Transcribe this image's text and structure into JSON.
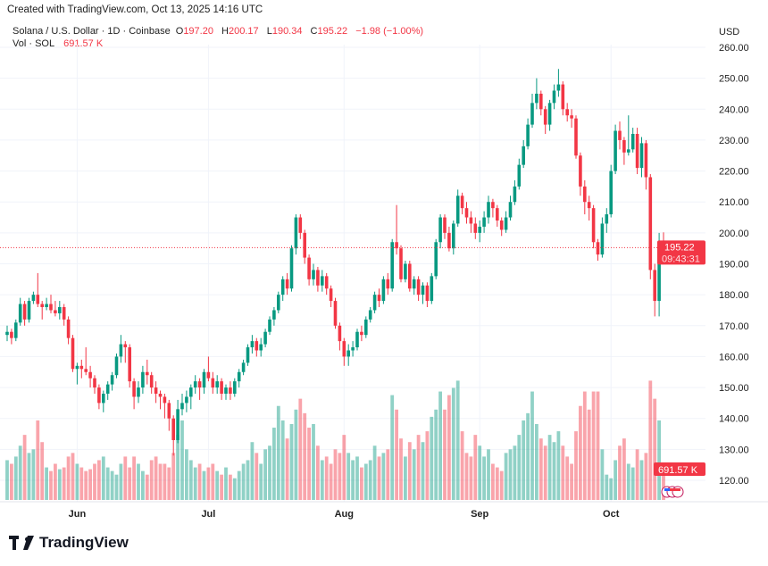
{
  "header": {
    "created": "Created with TradingView.com, Oct 13, 2025 14:16 UTC",
    "symbol": "Solana / U.S. Dollar · 1D · Coinbase",
    "o_label": "O",
    "o_value": "197.20",
    "h_label": "H",
    "h_value": "200.17",
    "l_label": "L",
    "l_value": "190.34",
    "c_label": "C",
    "c_value": "195.22",
    "change": "−1.98 (−1.00%)",
    "vol_label": "Vol · SOL",
    "vol_value": "691.57 K"
  },
  "axis": {
    "currency": "USD",
    "last_price": "195.22",
    "countdown": "09:43:31",
    "last_volume": "691.57 K"
  },
  "brand": {
    "name": "TradingView",
    "icon": "tradingview-logo-icon"
  },
  "colors": {
    "up": "#089981",
    "down": "#f23645",
    "grid": "#f0f3fa"
  },
  "chart_data": {
    "type": "candlestick",
    "ylim": [
      115,
      262
    ],
    "y_ticks": [
      "260.00",
      "250.00",
      "240.00",
      "230.00",
      "220.00",
      "210.00",
      "200.00",
      "190.00",
      "180.00",
      "170.00",
      "160.00",
      "150.00",
      "140.00",
      "130.00",
      "120.00"
    ],
    "x_ticks": [
      {
        "label": "Jun",
        "month": "2025-06"
      },
      {
        "label": "Jul",
        "month": "2025-07"
      },
      {
        "label": "Aug",
        "month": "2025-08"
      },
      {
        "label": "Sep",
        "month": "2025-09"
      },
      {
        "label": "Oct",
        "month": "2025-10"
      }
    ],
    "grid": true,
    "volume_unit": "K",
    "months": [
      {
        "month": "2025-05",
        "first_day": 16,
        "ohlc": [
          [
            167,
            170,
            165,
            168
          ],
          [
            168,
            169,
            164,
            166
          ],
          [
            166,
            172,
            165,
            171
          ],
          [
            171,
            179,
            170,
            177
          ],
          [
            177,
            178,
            170,
            172
          ],
          [
            172,
            179,
            171,
            178
          ],
          [
            178,
            181,
            177,
            180
          ],
          [
            180,
            187,
            176,
            177
          ],
          [
            177,
            178,
            172,
            176
          ],
          [
            176,
            179,
            175,
            177
          ],
          [
            177,
            180,
            174,
            175
          ],
          [
            175,
            178,
            173,
            174
          ],
          [
            174,
            178,
            172,
            176
          ],
          [
            176,
            177,
            170,
            172
          ],
          [
            172,
            173,
            164,
            166
          ],
          [
            166,
            167,
            155,
            156
          ]
        ],
        "volume": [
          1100,
          1000,
          1200,
          1500,
          1800,
          1300,
          1400,
          2200,
          1600,
          900,
          800,
          1000,
          850,
          900,
          1200,
          1300
        ]
      },
      {
        "month": "2025-06",
        "first_day": 1,
        "ohlc": [
          [
            156,
            158,
            151,
            157
          ],
          [
            157,
            159,
            153,
            156
          ],
          [
            156,
            163,
            154,
            155
          ],
          [
            155,
            157,
            150,
            153
          ],
          [
            153,
            154,
            148,
            150
          ],
          [
            150,
            151,
            143,
            145
          ],
          [
            145,
            149,
            142,
            148
          ],
          [
            148,
            152,
            146,
            151
          ],
          [
            151,
            155,
            149,
            154
          ],
          [
            154,
            161,
            153,
            160
          ],
          [
            160,
            167,
            158,
            164
          ],
          [
            164,
            165,
            158,
            163
          ],
          [
            163,
            164,
            150,
            152
          ],
          [
            152,
            153,
            143,
            147
          ],
          [
            147,
            152,
            145,
            150
          ],
          [
            150,
            157,
            148,
            155
          ],
          [
            155,
            159,
            151,
            154
          ],
          [
            154,
            155,
            148,
            150
          ],
          [
            150,
            152,
            145,
            148
          ],
          [
            148,
            149,
            143,
            147
          ],
          [
            147,
            148,
            140,
            145
          ],
          [
            145,
            146,
            136,
            140
          ],
          [
            140,
            141,
            128,
            133
          ],
          [
            133,
            146,
            132,
            143
          ],
          [
            143,
            148,
            141,
            145
          ],
          [
            145,
            149,
            142,
            147
          ],
          [
            147,
            151,
            143,
            150
          ],
          [
            150,
            154,
            148,
            152
          ],
          [
            152,
            153,
            146,
            150
          ],
          [
            150,
            156,
            148,
            155
          ]
        ],
        "volume": [
          1000,
          900,
          800,
          850,
          1000,
          1100,
          1200,
          900,
          800,
          700,
          1000,
          1200,
          900,
          1200,
          1000,
          800,
          700,
          1100,
          1200,
          1000,
          1000,
          900,
          1300,
          1800,
          2200,
          1400,
          1100,
          900,
          1000,
          800
        ]
      },
      {
        "month": "2025-07",
        "first_day": 1,
        "ohlc": [
          [
            155,
            160,
            152,
            153
          ],
          [
            153,
            155,
            148,
            150
          ],
          [
            150,
            154,
            148,
            152
          ],
          [
            152,
            153,
            146,
            148
          ],
          [
            148,
            151,
            146,
            150
          ],
          [
            150,
            152,
            146,
            148
          ],
          [
            148,
            153,
            147,
            152
          ],
          [
            152,
            156,
            150,
            155
          ],
          [
            155,
            159,
            154,
            158
          ],
          [
            158,
            164,
            157,
            163
          ],
          [
            163,
            167,
            161,
            165
          ],
          [
            165,
            166,
            160,
            162
          ],
          [
            162,
            166,
            160,
            164
          ],
          [
            164,
            169,
            163,
            168
          ],
          [
            168,
            173,
            167,
            172
          ],
          [
            172,
            176,
            170,
            175
          ],
          [
            175,
            181,
            174,
            180
          ],
          [
            180,
            186,
            178,
            185
          ],
          [
            185,
            187,
            180,
            182
          ],
          [
            182,
            196,
            181,
            195
          ],
          [
            195,
            206,
            193,
            205
          ],
          [
            205,
            206,
            198,
            200
          ],
          [
            200,
            201,
            190,
            192
          ],
          [
            192,
            193,
            183,
            185
          ],
          [
            185,
            190,
            183,
            188
          ],
          [
            188,
            189,
            181,
            183
          ],
          [
            183,
            188,
            181,
            186
          ],
          [
            186,
            187,
            180,
            182
          ],
          [
            182,
            183,
            176,
            178
          ],
          [
            178,
            179,
            169,
            170
          ],
          [
            170,
            171,
            162,
            165
          ]
        ],
        "volume": [
          900,
          1000,
          800,
          700,
          900,
          700,
          600,
          800,
          1000,
          1100,
          1600,
          1300,
          1000,
          1400,
          1500,
          2000,
          2600,
          2200,
          1700,
          2100,
          2500,
          2800,
          2400,
          2000,
          2100,
          1500,
          1100,
          1200,
          1000,
          1400,
          1300
        ]
      },
      {
        "month": "2025-08",
        "first_day": 1,
        "ohlc": [
          [
            165,
            166,
            157,
            160
          ],
          [
            160,
            164,
            157,
            162
          ],
          [
            162,
            165,
            160,
            163
          ],
          [
            163,
            169,
            162,
            168
          ],
          [
            168,
            170,
            165,
            167
          ],
          [
            167,
            173,
            166,
            172
          ],
          [
            172,
            176,
            171,
            175
          ],
          [
            175,
            181,
            174,
            180
          ],
          [
            180,
            182,
            176,
            178
          ],
          [
            178,
            186,
            177,
            185
          ],
          [
            185,
            187,
            180,
            182
          ],
          [
            182,
            198,
            181,
            197
          ],
          [
            197,
            209,
            193,
            195
          ],
          [
            195,
            196,
            184,
            185
          ],
          [
            185,
            191,
            184,
            190
          ],
          [
            190,
            191,
            181,
            182
          ],
          [
            182,
            186,
            180,
            185
          ],
          [
            185,
            186,
            178,
            180
          ],
          [
            180,
            184,
            177,
            183
          ],
          [
            183,
            184,
            176,
            178
          ],
          [
            178,
            187,
            177,
            186
          ],
          [
            186,
            198,
            185,
            197
          ],
          [
            197,
            206,
            195,
            205
          ],
          [
            205,
            206,
            198,
            200
          ],
          [
            200,
            202,
            194,
            195
          ],
          [
            195,
            204,
            193,
            203
          ],
          [
            203,
            214,
            202,
            212
          ],
          [
            212,
            213,
            206,
            208
          ],
          [
            208,
            210,
            203,
            205
          ],
          [
            205,
            207,
            200,
            203
          ],
          [
            203,
            205,
            198,
            200
          ]
        ],
        "volume": [
          1800,
          1300,
          1100,
          1200,
          900,
          1000,
          1100,
          1500,
          1200,
          1300,
          1400,
          2900,
          2500,
          1700,
          1200,
          1600,
          1400,
          1800,
          1600,
          1900,
          2300,
          2500,
          3000,
          2500,
          2900,
          3100,
          3300,
          1900,
          1300,
          1200,
          1800
        ]
      },
      {
        "month": "2025-09",
        "first_day": 1,
        "ohlc": [
          [
            200,
            204,
            197,
            202
          ],
          [
            202,
            207,
            200,
            205
          ],
          [
            205,
            212,
            203,
            210
          ],
          [
            210,
            211,
            205,
            208
          ],
          [
            208,
            209,
            202,
            204
          ],
          [
            204,
            205,
            199,
            201
          ],
          [
            201,
            207,
            200,
            205
          ],
          [
            205,
            212,
            204,
            210
          ],
          [
            210,
            217,
            209,
            215
          ],
          [
            215,
            224,
            214,
            222
          ],
          [
            222,
            230,
            221,
            228
          ],
          [
            228,
            237,
            227,
            235
          ],
          [
            235,
            245,
            234,
            242
          ],
          [
            242,
            250,
            240,
            245
          ],
          [
            245,
            246,
            238,
            240
          ],
          [
            240,
            241,
            232,
            235
          ],
          [
            235,
            243,
            233,
            242
          ],
          [
            242,
            248,
            240,
            246
          ],
          [
            246,
            253,
            244,
            248
          ],
          [
            248,
            249,
            238,
            240
          ],
          [
            240,
            242,
            236,
            238
          ],
          [
            238,
            240,
            234,
            237
          ],
          [
            237,
            238,
            224,
            225
          ],
          [
            225,
            226,
            212,
            215
          ],
          [
            215,
            217,
            206,
            210
          ],
          [
            210,
            212,
            204,
            208
          ],
          [
            208,
            209,
            195,
            197
          ],
          [
            197,
            198,
            191,
            193
          ],
          [
            193,
            205,
            192,
            203
          ],
          [
            203,
            208,
            200,
            206
          ]
        ],
        "volume": [
          1500,
          1200,
          1400,
          1000,
          900,
          800,
          1300,
          1400,
          1500,
          1800,
          2200,
          2400,
          3000,
          2100,
          1700,
          1500,
          1800,
          1600,
          1900,
          1500,
          1200,
          1000,
          1900,
          2600,
          3000,
          2500,
          3000,
          3000,
          1400,
          700
        ]
      },
      {
        "month": "2025-10",
        "first_day": 1,
        "ohlc": [
          [
            206,
            222,
            205,
            220
          ],
          [
            220,
            235,
            219,
            233
          ],
          [
            233,
            236,
            227,
            230
          ],
          [
            230,
            231,
            222,
            226
          ],
          [
            226,
            238,
            225,
            227
          ],
          [
            227,
            234,
            226,
            232
          ],
          [
            232,
            234,
            219,
            221
          ],
          [
            221,
            231,
            218,
            229
          ],
          [
            229,
            230,
            214,
            218
          ],
          [
            218,
            219,
            185,
            188
          ],
          [
            188,
            190,
            173,
            178
          ],
          [
            178,
            200,
            173,
            197.2
          ],
          [
            197.2,
            200.17,
            190.34,
            195.22
          ]
        ],
        "volume": [
          600,
          1100,
          1500,
          1700,
          1000,
          900,
          1400,
          1100,
          1300,
          3300,
          2800,
          2200,
          691.57
        ]
      }
    ]
  }
}
